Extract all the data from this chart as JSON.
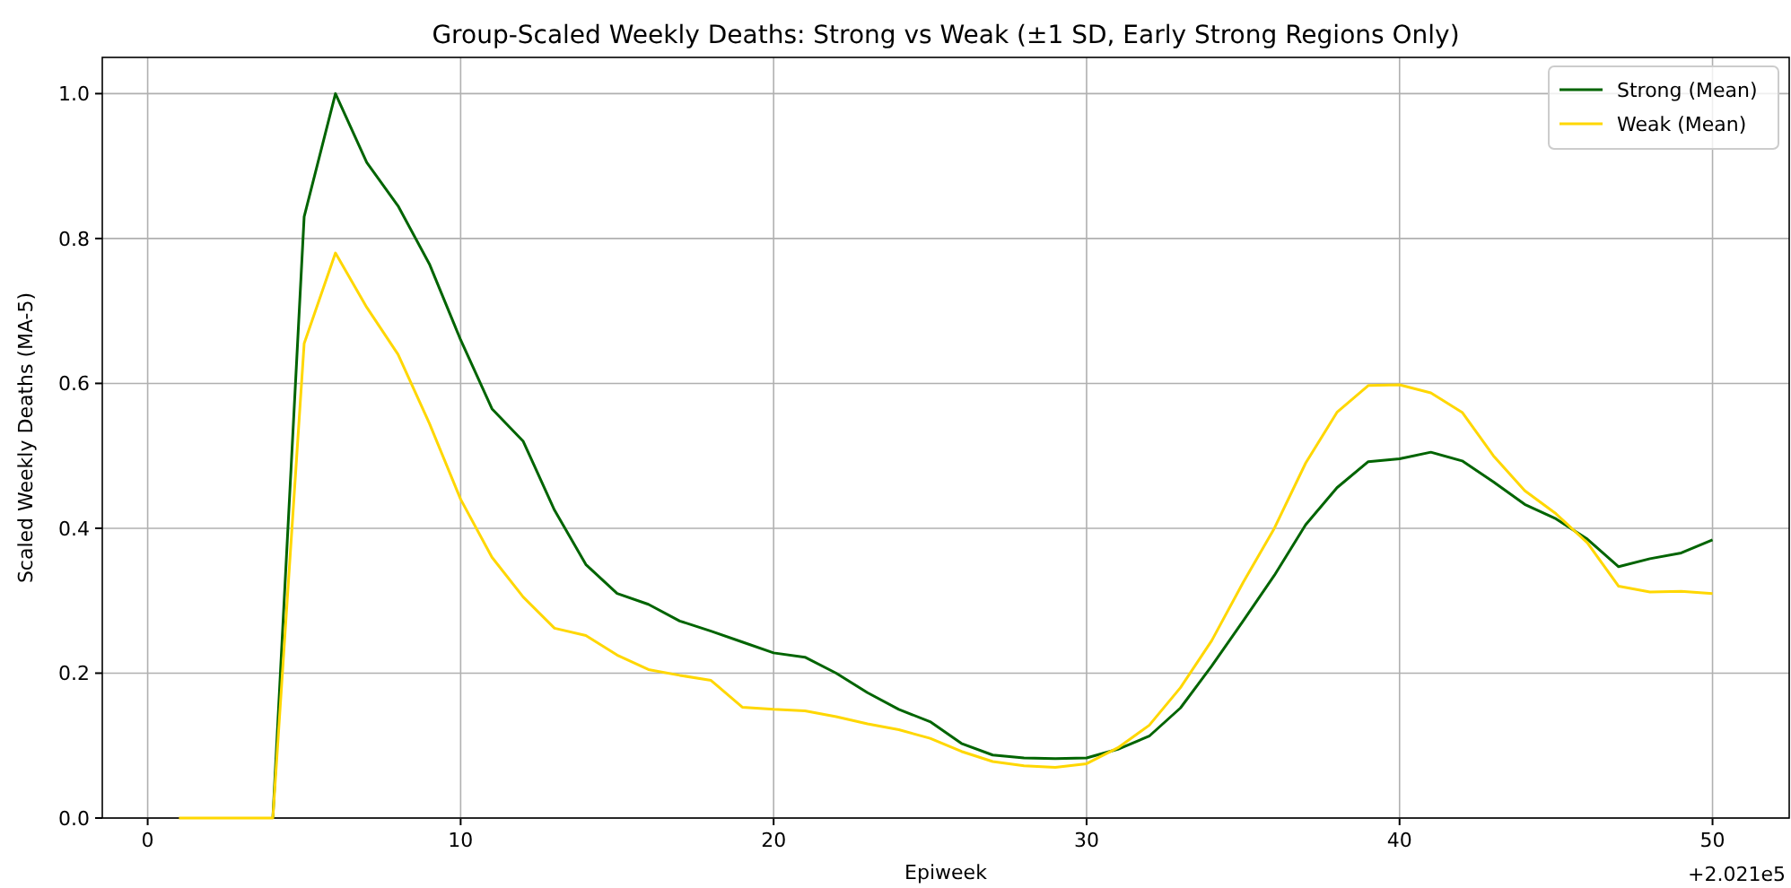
{
  "chart_data": {
    "type": "line",
    "title": "Group-Scaled Weekly Deaths: Strong vs Weak (±1 SD, Early Strong Regions Only)",
    "xlabel": "Epiweek",
    "ylabel": "Scaled Weekly Deaths (MA-5)",
    "x": [
      1,
      2,
      3,
      4,
      5,
      6,
      7,
      8,
      9,
      10,
      11,
      12,
      13,
      14,
      15,
      16,
      17,
      18,
      19,
      20,
      21,
      22,
      23,
      24,
      25,
      26,
      27,
      28,
      29,
      30,
      31,
      32,
      33,
      34,
      35,
      36,
      37,
      38,
      39,
      40,
      41,
      42,
      43,
      44,
      45,
      46,
      47,
      48,
      49,
      50
    ],
    "series": [
      {
        "name": "Strong (Mean)",
        "color": "#006400",
        "values": [
          null,
          null,
          null,
          0,
          0.83,
          1.0,
          0.905,
          0.845,
          0.765,
          0.66,
          0.565,
          0.52,
          0.425,
          0.35,
          0.31,
          0.295,
          0.272,
          0.258,
          0.243,
          0.228,
          0.222,
          0.2,
          0.173,
          0.15,
          0.133,
          0.103,
          0.087,
          0.083,
          0.082,
          0.083,
          0.095,
          0.113,
          0.152,
          0.21,
          0.272,
          0.335,
          0.405,
          0.456,
          0.492,
          0.496,
          0.505,
          0.493,
          0.464,
          0.433,
          0.413,
          0.385,
          0.347,
          0.358,
          0.366,
          0.384
        ]
      },
      {
        "name": "Weak (Mean)",
        "color": "#ffd700",
        "values": [
          0,
          0,
          0,
          0,
          0.655,
          0.78,
          0.705,
          0.64,
          0.545,
          0.44,
          0.36,
          0.305,
          0.262,
          0.252,
          0.225,
          0.205,
          0.197,
          0.19,
          0.153,
          0.15,
          0.148,
          0.14,
          0.13,
          0.122,
          0.11,
          0.092,
          0.078,
          0.072,
          0.07,
          0.075,
          0.097,
          0.128,
          0.18,
          0.245,
          0.325,
          0.4,
          0.49,
          0.56,
          0.597,
          0.598,
          0.587,
          0.56,
          0.5,
          0.452,
          0.42,
          0.38,
          0.32,
          0.312,
          0.313,
          0.31
        ]
      }
    ],
    "xlim": [
      -1.45,
      52.45
    ],
    "xticks": [
      0,
      10,
      20,
      30,
      40,
      50
    ],
    "ylim": [
      0,
      1.05
    ],
    "yticks": [
      {
        "value": 0,
        "label": "0.0"
      },
      {
        "value": 0.2,
        "label": "0.2"
      },
      {
        "value": 0.4,
        "label": "0.4"
      },
      {
        "value": 0.6,
        "label": "0.6"
      },
      {
        "value": 0.8,
        "label": "0.8"
      },
      {
        "value": 1.0,
        "label": "1.0"
      }
    ],
    "annotations": [
      "+2.021e5"
    ],
    "grid": true,
    "legend": "top right",
    "marker": "none",
    "line_style": "solid"
  }
}
